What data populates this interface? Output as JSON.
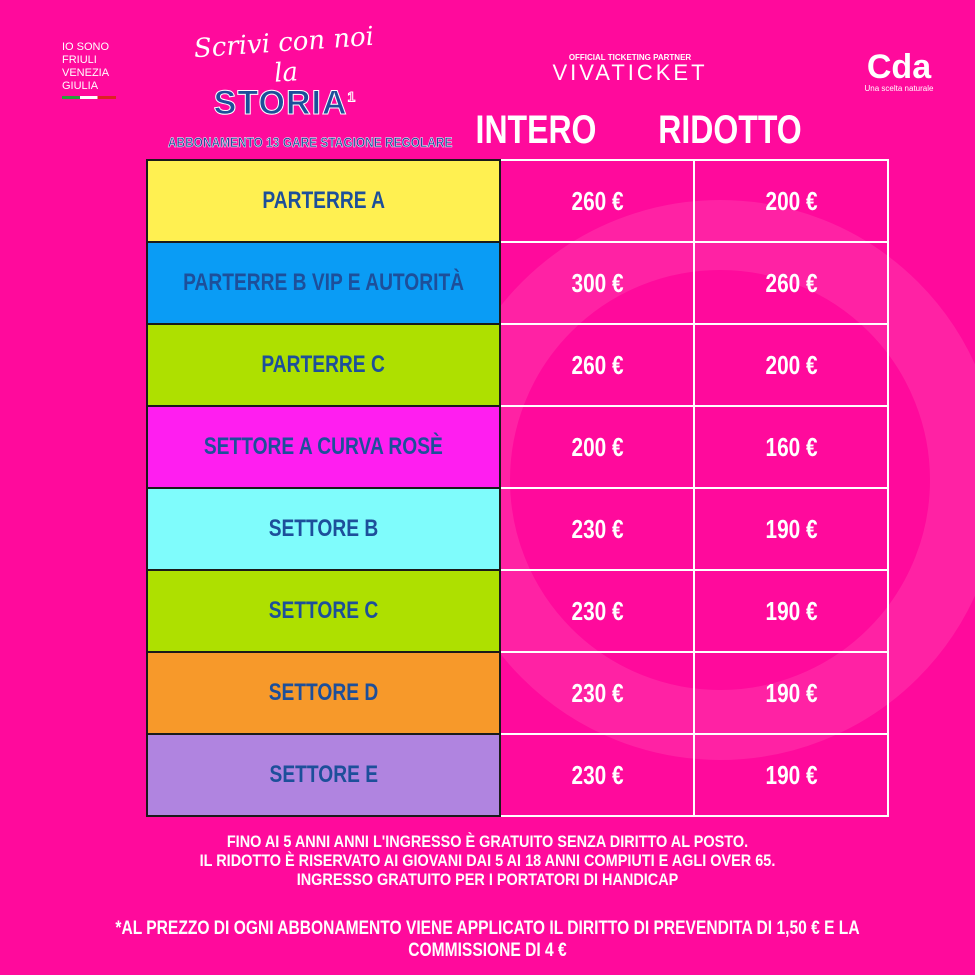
{
  "header": {
    "region_logo_lines": [
      "IO SONO",
      "FRIULI",
      "VENEZIA",
      "GIULIA"
    ],
    "campaign_script": "Scrivi con noi la",
    "campaign_title": "STORIA",
    "campaign_sup": "1",
    "subtitle": "ABBONAMENTO 13 GARE STAGIONE REGOLARE",
    "partner_label": "OFFICIAL TICKETING PARTNER",
    "partner_name": "VIVATICKET",
    "sponsor_name": "Cda",
    "sponsor_tagline": "Una scelta naturale"
  },
  "table": {
    "columns": [
      "INTERO",
      "RIDOTTO"
    ],
    "rows": [
      {
        "sector": "PARTERRE A",
        "color": "#fff051",
        "intero": "260 €",
        "ridotto": "200 €"
      },
      {
        "sector": "PARTERRE B VIP E AUTORITÀ",
        "color": "#0a9cf5",
        "intero": "300 €",
        "ridotto": "260 €"
      },
      {
        "sector": "PARTERRE C",
        "color": "#aee000",
        "intero": "260 €",
        "ridotto": "200 €"
      },
      {
        "sector": "SETTORE A CURVA ROSÈ",
        "color": "#ff1ef0",
        "intero": "200 €",
        "ridotto": "160 €"
      },
      {
        "sector": "SETTORE B",
        "color": "#7ffcfc",
        "intero": "230 €",
        "ridotto": "190 €"
      },
      {
        "sector": "SETTORE C",
        "color": "#aee000",
        "intero": "230 €",
        "ridotto": "190 €"
      },
      {
        "sector": "SETTORE D",
        "color": "#f7992a",
        "intero": "230 €",
        "ridotto": "190 €"
      },
      {
        "sector": "SETTORE E",
        "color": "#b084e0",
        "intero": "230 €",
        "ridotto": "190 €"
      }
    ]
  },
  "notes": [
    "FINO AI 5 ANNI ANNI L'INGRESSO È GRATUITO SENZA DIRITTO AL POSTO.",
    "IL RIDOTTO È RISERVATO AI GIOVANI DAI 5 AI 18 ANNI COMPIUTI E AGLI OVER 65.",
    "INGRESSO GRATUITO PER I PORTATORI DI HANDICAP"
  ],
  "footnote": "*AL PREZZO DI OGNI ABBONAMENTO VIENE APPLICATO IL DIRITTO DI PREVENDITA DI 1,50 € E LA COMMISSIONE DI 4 €",
  "colors": {
    "background": "#ff0a9c",
    "sector_text": "#1d4f9a"
  }
}
